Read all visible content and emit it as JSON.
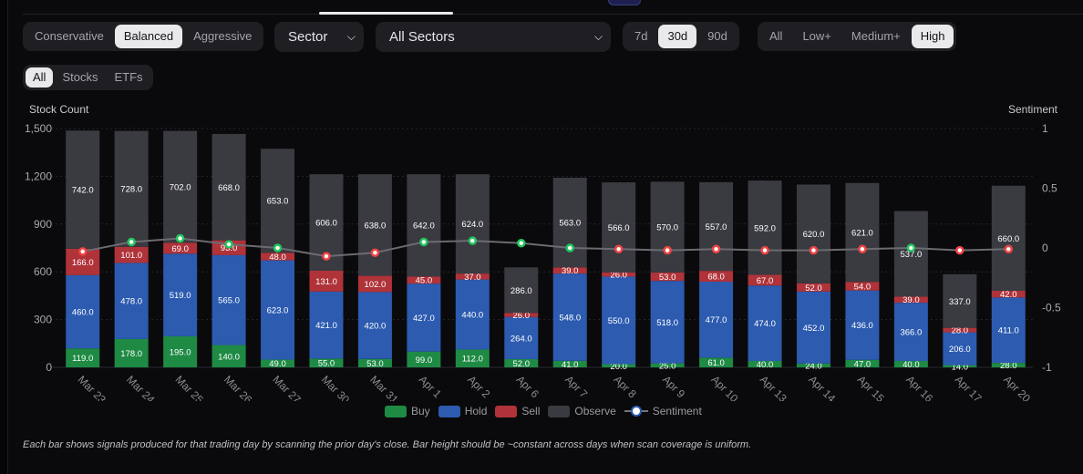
{
  "controls": {
    "risk": {
      "options": [
        "Conservative",
        "Balanced",
        "Aggressive"
      ],
      "selected": "Balanced"
    },
    "group_select": {
      "value": "Sector"
    },
    "sector_select": {
      "value": "All Sectors"
    },
    "period": {
      "options": [
        "7d",
        "30d",
        "90d"
      ],
      "selected": "30d"
    },
    "confidence": {
      "options": [
        "All",
        "Low+",
        "Medium+",
        "High"
      ],
      "selected": "High"
    },
    "asset_type": {
      "options": [
        "All",
        "Stocks",
        "ETFs"
      ],
      "selected": "All"
    }
  },
  "colors": {
    "buy": "#1e8a44",
    "hold": "#2c5bb0",
    "sell": "#b0333a",
    "observe": "#3a3b41",
    "sentiment_pos": "#22c55e",
    "sentiment_neg": "#ef4444",
    "sentiment_line": "#6b6b70"
  },
  "chart_data": {
    "type": "bar",
    "stacked": true,
    "ylabel": "Stock Count",
    "y2label": "Sentiment",
    "ylim": [
      0,
      1500
    ],
    "yticks": [
      "0",
      "300",
      "600",
      "900",
      "1,200",
      "1,500"
    ],
    "y2lim": [
      -1,
      1
    ],
    "y2ticks": [
      "-1",
      "-0.5",
      "0",
      "0.5",
      "1"
    ],
    "grid": true,
    "legend_position": "bottom",
    "categories": [
      "Mar 23",
      "Mar 24",
      "Mar 25",
      "Mar 26",
      "Mar 27",
      "Mar 30",
      "Mar 31",
      "Apr 1",
      "Apr 2",
      "Apr 6",
      "Apr 7",
      "Apr 8",
      "Apr 9",
      "Apr 10",
      "Apr 13",
      "Apr 14",
      "Apr 15",
      "Apr 16",
      "Apr 17",
      "Apr 20"
    ],
    "series": [
      {
        "name": "Buy",
        "values": [
          119,
          178,
          195,
          140,
          49,
          55,
          53,
          99,
          112,
          52,
          41,
          20,
          25,
          61,
          40,
          24,
          47,
          40,
          14,
          28
        ]
      },
      {
        "name": "Hold",
        "values": [
          460,
          478,
          519,
          565,
          623,
          421,
          420,
          427,
          440,
          264,
          548,
          550,
          518,
          477,
          474,
          452,
          436,
          366,
          206,
          411
        ]
      },
      {
        "name": "Sell",
        "values": [
          166,
          101,
          69,
          93,
          48,
          131,
          102,
          45,
          37,
          26,
          39,
          26,
          53,
          68,
          67,
          52,
          54,
          39,
          28,
          42
        ]
      },
      {
        "name": "Observe",
        "values": [
          742,
          728,
          702,
          668,
          653,
          606,
          638,
          642,
          624,
          286,
          563,
          566,
          570,
          557,
          592,
          620,
          621,
          537,
          337,
          660
        ]
      },
      {
        "name": "Sentiment",
        "type": "line",
        "axis": "right",
        "values": [
          -0.03,
          0.05,
          0.08,
          0.03,
          0.0,
          -0.07,
          -0.04,
          0.05,
          0.06,
          0.04,
          0.0,
          -0.01,
          -0.02,
          -0.01,
          -0.02,
          -0.02,
          -0.01,
          0.0,
          -0.02,
          -0.01
        ]
      }
    ]
  },
  "footnote": "Each bar shows signals produced for that trading day by scanning the prior day's close. Bar height should be ~constant across days when scan coverage is uniform."
}
